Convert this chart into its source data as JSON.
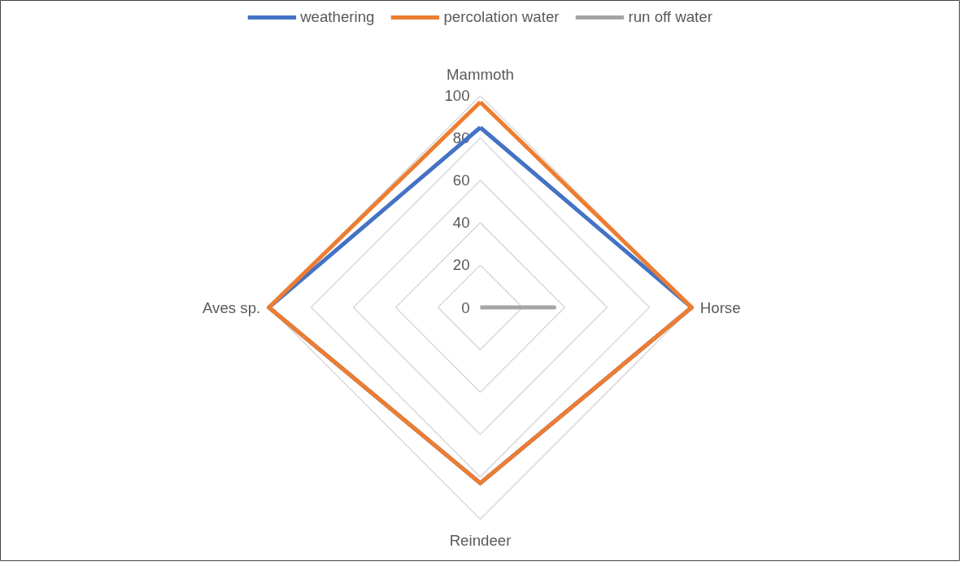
{
  "chart_data": {
    "type": "radar",
    "categories": [
      "Mammoth",
      "Horse",
      "Reindeer",
      "Aves sp."
    ],
    "series": [
      {
        "name": "weathering",
        "color": "#4472c4",
        "values": [
          85,
          100,
          83,
          100
        ]
      },
      {
        "name": "percolation water",
        "color": "#ed7d31",
        "values": [
          97,
          100,
          83,
          100
        ]
      },
      {
        "name": "run off water",
        "color": "#a5a5a5",
        "values": [
          0,
          35,
          0,
          0
        ]
      }
    ],
    "ylim": [
      0,
      100
    ],
    "yticks": [
      0,
      20,
      40,
      60,
      80,
      100
    ],
    "grid": true,
    "legend": "top",
    "marker": "none",
    "line_style": "solid"
  }
}
